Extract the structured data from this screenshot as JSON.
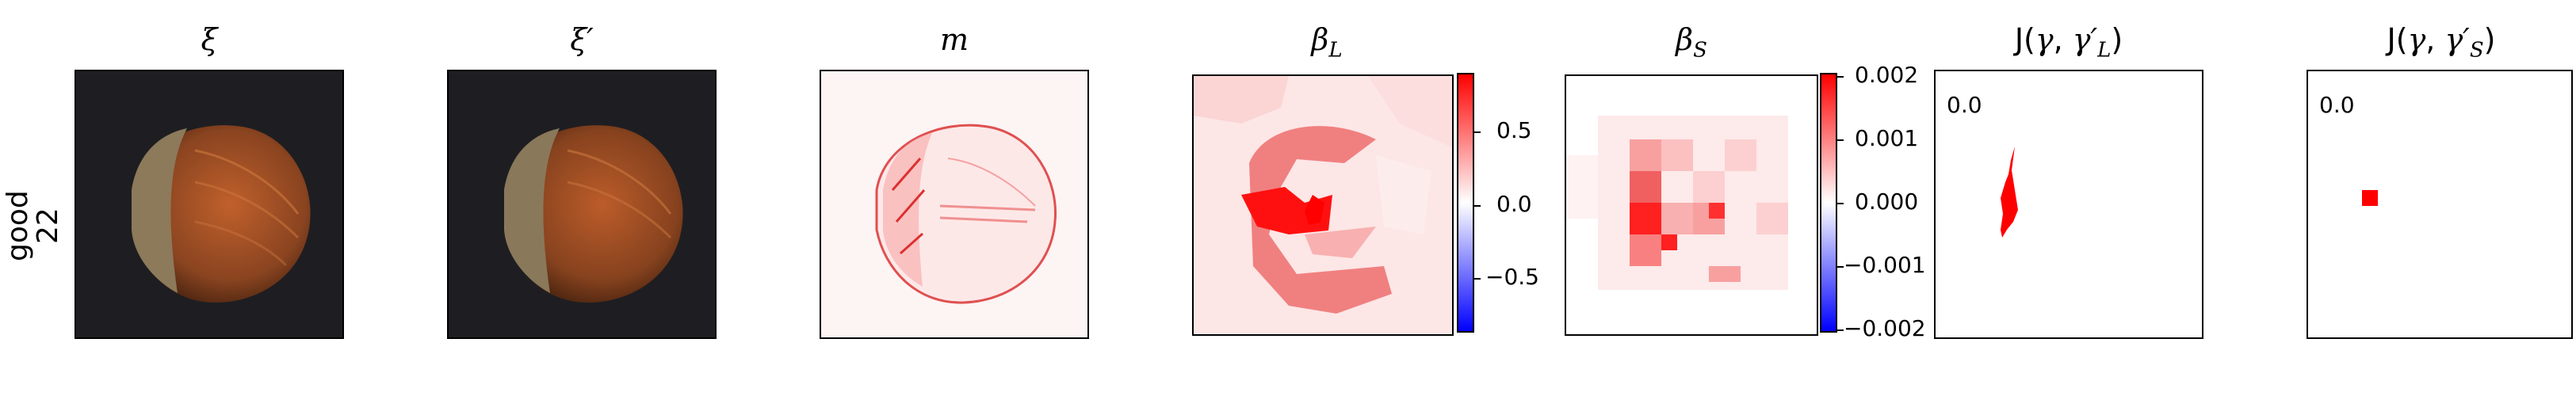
{
  "row_label": {
    "line1": "good",
    "line2": "22"
  },
  "panels": {
    "xi": {
      "title": "ξ"
    },
    "xi_prime": {
      "title": "ξ′"
    },
    "m": {
      "title": "m"
    },
    "beta_L": {
      "title_base": "β",
      "title_sub": "L"
    },
    "beta_S": {
      "title_base": "β",
      "title_sub": "S"
    },
    "J_L": {
      "title_prefix": "J(",
      "title_gamma": "γ",
      "title_sep": ", ",
      "title_gamma2": "γ′",
      "title_sub": "L",
      "title_suffix": ")",
      "value": "0.0"
    },
    "J_S": {
      "title_prefix": "J(",
      "title_gamma": "γ",
      "title_sep": ", ",
      "title_gamma2": "γ′",
      "title_sub": "S",
      "title_suffix": ")",
      "value": "0.0"
    }
  },
  "colorbar_L": {
    "ticks": [
      "0.5",
      "0.0",
      "−0.5"
    ]
  },
  "colorbar_S": {
    "ticks": [
      "0.002",
      "0.001",
      "0.000",
      "−0.001",
      "−0.002"
    ]
  },
  "colors": {
    "background_dark": "#1e1e22",
    "hazelnut": "#8a4420",
    "hazelnut_cap": "#8c7a5a",
    "positive": "#ff0000",
    "negative": "#0000ff"
  }
}
